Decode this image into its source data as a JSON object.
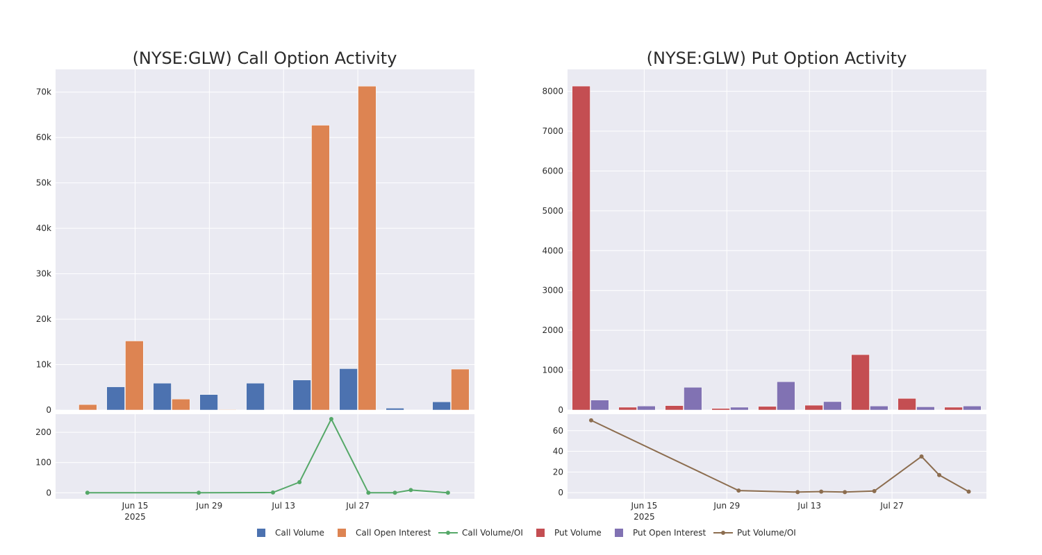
{
  "legend": [
    {
      "label": "Call Volume",
      "kind": "bar",
      "color": "#4c72b0"
    },
    {
      "label": "Call Open Interest",
      "kind": "bar",
      "color": "#dd8452"
    },
    {
      "label": "Call Volume/OI",
      "kind": "line",
      "color": "#55a868"
    },
    {
      "label": "Put Volume",
      "kind": "bar",
      "color": "#c44e52"
    },
    {
      "label": "Put Open Interest",
      "kind": "bar",
      "color": "#8172b3"
    },
    {
      "label": "Put Volume/OI",
      "kind": "line",
      "color": "#8c6d4f"
    }
  ],
  "chart_data": [
    {
      "type": "bar",
      "title": "(NYSE:GLW) Call Option Activity",
      "grid": true,
      "categories": [
        "Jun 6",
        "Jun 13",
        "Jun 20",
        "Jun 27",
        "Jul 4",
        "Jul 11",
        "Jul 18",
        "Jul 25",
        "Aug 1"
      ],
      "series": [
        {
          "name": "Call Volume",
          "color": "#4c72b0",
          "values": [
            20,
            5100,
            5900,
            3400,
            5900,
            6600,
            9100,
            400,
            1800
          ]
        },
        {
          "name": "Call Open Interest",
          "color": "#dd8452",
          "values": [
            1200,
            15200,
            2400,
            100,
            0,
            62700,
            71300,
            0,
            9000
          ]
        }
      ],
      "ylim": [
        0,
        75000
      ],
      "yticks": [
        0,
        10000,
        20000,
        30000,
        40000,
        50000,
        60000,
        70000
      ],
      "yticklabels": [
        "0",
        "10k",
        "20k",
        "30k",
        "40k",
        "50k",
        "60k",
        "70k"
      ],
      "ratio": {
        "type": "line",
        "name": "Call Volume/OI",
        "color": "#55a868",
        "x": [
          "2025-06-06",
          "2025-06-27",
          "2025-07-11",
          "2025-07-16",
          "2025-07-22",
          "2025-07-29",
          "2025-08-03",
          "2025-08-06",
          "2025-08-13"
        ],
        "y": [
          0,
          0,
          1,
          35,
          244,
          0,
          0,
          9,
          0
        ],
        "ylim": [
          -20,
          260
        ],
        "yticks": [
          0,
          100,
          200
        ]
      },
      "xlim": [
        "2025-05-31",
        "2025-08-18"
      ],
      "xticks": [
        "2025-06-15",
        "2025-06-29",
        "2025-07-13",
        "2025-07-27"
      ],
      "xticklabels": [
        "Jun 15",
        "Jun 29",
        "Jul 13",
        "Jul 27"
      ],
      "xsublabel": "2025"
    },
    {
      "type": "bar",
      "title": "(NYSE:GLW) Put Option Activity",
      "grid": true,
      "categories": [
        "Jun 6",
        "Jun 13",
        "Jun 20",
        "Jun 27",
        "Jul 4",
        "Jul 11",
        "Jul 18",
        "Jul 25",
        "Aug 1"
      ],
      "series": [
        {
          "name": "Put Volume",
          "color": "#c44e52",
          "values": [
            8130,
            70,
            110,
            40,
            90,
            120,
            1390,
            290,
            70
          ]
        },
        {
          "name": "Put Open Interest",
          "color": "#8172b3",
          "values": [
            250,
            100,
            570,
            70,
            710,
            210,
            100,
            80,
            100
          ]
        }
      ],
      "ylim": [
        0,
        8550
      ],
      "yticks": [
        0,
        1000,
        2000,
        3000,
        4000,
        5000,
        6000,
        7000,
        8000
      ],
      "yticklabels": [
        "0",
        "1000",
        "2000",
        "3000",
        "4000",
        "5000",
        "6000",
        "7000",
        "8000"
      ],
      "ratio": {
        "type": "line",
        "name": "Put Volume/OI",
        "color": "#8c6d4f",
        "x": [
          "2025-06-06",
          "2025-07-01",
          "2025-07-11",
          "2025-07-15",
          "2025-07-19",
          "2025-07-24",
          "2025-08-01",
          "2025-08-04",
          "2025-08-09"
        ],
        "y": [
          70,
          2,
          0.5,
          1,
          0.5,
          1.5,
          35,
          17,
          1
        ],
        "ylim": [
          -6,
          76
        ],
        "yticks": [
          0,
          20,
          40,
          60
        ]
      },
      "xlim": [
        "2025-06-02",
        "2025-08-12"
      ],
      "xticks": [
        "2025-06-15",
        "2025-06-29",
        "2025-07-13",
        "2025-07-27"
      ],
      "xticklabels": [
        "Jun 15",
        "Jun 29",
        "Jul 13",
        "Jul 27"
      ],
      "xsublabel": "2025"
    }
  ]
}
